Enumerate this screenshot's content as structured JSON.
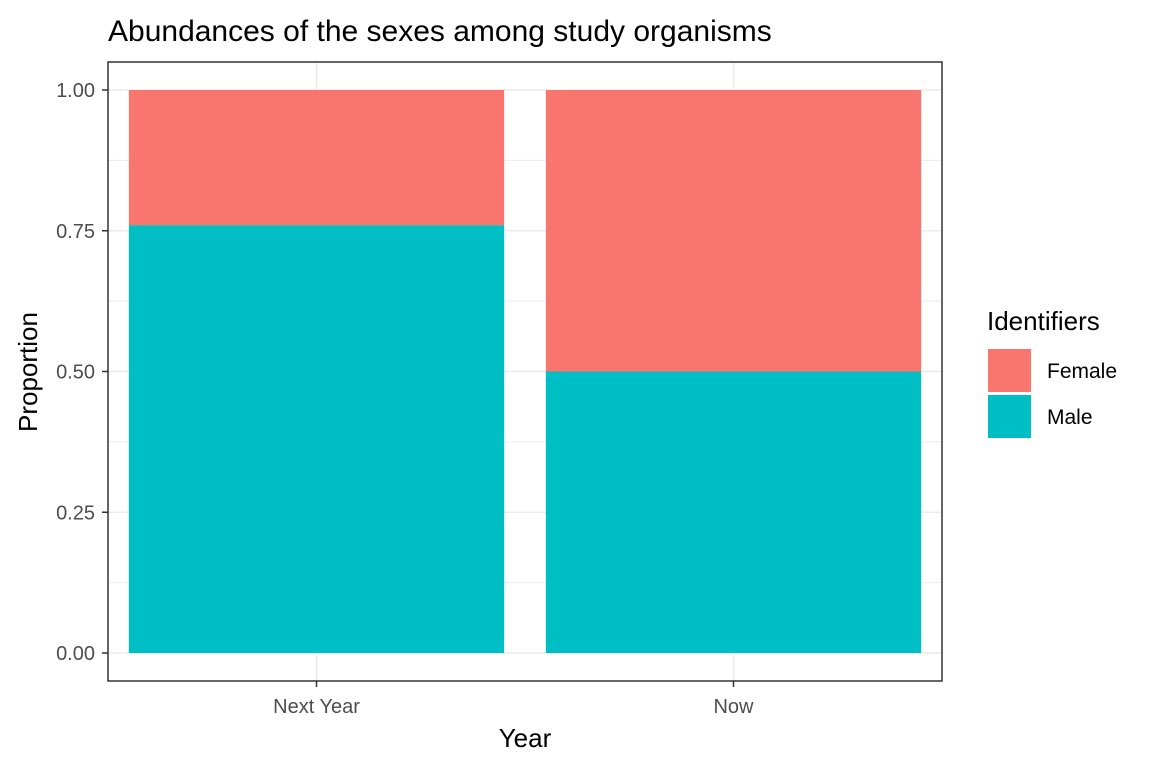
{
  "chart_data": {
    "type": "bar",
    "stacked": true,
    "title": "Abundances of the sexes among study organisms",
    "xlabel": "Year",
    "ylabel": "Proportion",
    "categories": [
      "Next Year",
      "Now"
    ],
    "series": [
      {
        "name": "Male",
        "values": [
          0.76,
          0.5
        ],
        "color": "#00BFC4"
      },
      {
        "name": "Female",
        "values": [
          0.24,
          0.5
        ],
        "color": "#F8766D"
      }
    ],
    "ylim": [
      0,
      1
    ],
    "yticks": [
      "0.00",
      "0.25",
      "0.50",
      "0.75",
      "1.00"
    ],
    "grid": true,
    "legend": {
      "title": "Identifiers",
      "position": "right",
      "items": [
        {
          "label": "Female",
          "color": "#F8766D"
        },
        {
          "label": "Male",
          "color": "#00BFC4"
        }
      ]
    }
  }
}
